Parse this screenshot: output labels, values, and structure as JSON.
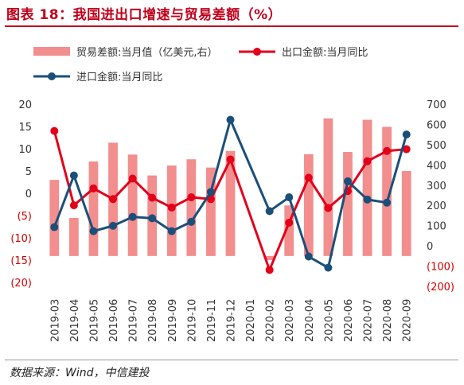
{
  "figure": {
    "title": "图表 18：我国进出口增速与贸易差额（%）",
    "source": "数据来源：Wind，中信建投"
  },
  "legend": {
    "items": [
      {
        "label": "贸易差额:当月值（亿美元,右）",
        "color": "#f28e8e",
        "shape": "bar"
      },
      {
        "label": "出口金额:当月同比",
        "color": "#e3001b",
        "shape": "line"
      },
      {
        "label": "进口金额:当月同比",
        "color": "#1a4f7a",
        "shape": "line"
      }
    ]
  },
  "chart_data": {
    "type": "bar",
    "categories": [
      "2019-03",
      "2019-04",
      "2019-05",
      "2019-06",
      "2019-07",
      "2019-08",
      "2019-09",
      "2019-10",
      "2019-11",
      "2019-12",
      "2020-01",
      "2020-02",
      "2020-03",
      "2020-04",
      "2020-05",
      "2020-06",
      "2020-07",
      "2020-08",
      "2020-09"
    ],
    "left_axis": {
      "min": -20,
      "max": 20,
      "step": 5,
      "labels": [
        "20",
        "15",
        "10",
        "5",
        "0",
        "(5)",
        "(10)",
        "(15)",
        "(20)"
      ]
    },
    "right_axis": {
      "min": -200,
      "max": 700,
      "step": 100,
      "labels": [
        "700",
        "600",
        "500",
        "400",
        "300",
        "200",
        "100",
        "0",
        "(100)",
        "(200)"
      ]
    },
    "series": [
      {
        "name": "贸易差额:当月值（亿美元,右）",
        "axis": "right",
        "kind": "bar",
        "color": "#f28e8e",
        "values": [
          326,
          138,
          417,
          510,
          451,
          348,
          397,
          428,
          387,
          469,
          null,
          -70,
          200,
          453,
          630,
          464,
          623,
          588,
          370
        ]
      },
      {
        "name": "出口金额:当月同比",
        "axis": "left",
        "kind": "line",
        "color": "#e3001b",
        "values": [
          14.0,
          -2.7,
          1.1,
          -1.3,
          3.3,
          -1.0,
          -3.2,
          -0.9,
          -1.3,
          7.6,
          null,
          -17.2,
          -6.6,
          3.5,
          -3.3,
          0.5,
          7.2,
          9.5,
          9.9
        ]
      },
      {
        "name": "进口金额:当月同比",
        "axis": "left",
        "kind": "line",
        "color": "#1a4f7a",
        "values": [
          -7.6,
          4.0,
          -8.5,
          -7.3,
          -5.3,
          -5.6,
          -8.5,
          -6.4,
          0.3,
          16.5,
          null,
          -4.0,
          -0.9,
          -14.2,
          -16.7,
          2.7,
          -1.4,
          -2.1,
          13.2
        ]
      }
    ]
  }
}
